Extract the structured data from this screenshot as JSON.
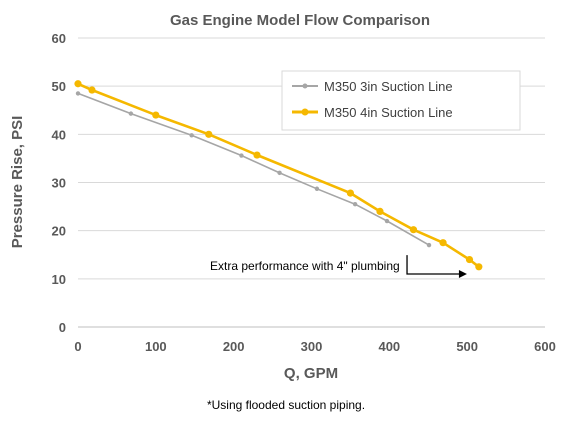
{
  "chart_data": {
    "type": "line",
    "title": "Gas Engine Model Flow Comparison",
    "xlabel": "Q, GPM",
    "ylabel": "Pressure Rise, PSI",
    "xlim": [
      0,
      600
    ],
    "ylim": [
      0,
      60
    ],
    "x_ticks": [
      "0",
      "100",
      "200",
      "300",
      "400",
      "500",
      "600"
    ],
    "y_ticks": [
      "0",
      "10",
      "20",
      "30",
      "40",
      "50",
      "60"
    ],
    "grid": "horizontal",
    "legend_position": "top-right",
    "series": [
      {
        "name": "M350 3in Suction Line",
        "color": "#a6a6a6",
        "points": [
          [
            0,
            48.5
          ],
          [
            68,
            44.3
          ],
          [
            146,
            39.8
          ],
          [
            210,
            35.6
          ],
          [
            259,
            32.0
          ],
          [
            307,
            28.7
          ],
          [
            356,
            25.5
          ],
          [
            397,
            22.0
          ],
          [
            451,
            17.0
          ]
        ]
      },
      {
        "name": "M350 4in Suction Line",
        "color": "#f5b800",
        "points": [
          [
            0,
            50.5
          ],
          [
            18,
            49.2
          ],
          [
            100,
            44.0
          ],
          [
            168,
            40.0
          ],
          [
            230,
            35.7
          ],
          [
            350,
            27.8
          ],
          [
            388,
            24.0
          ],
          [
            431,
            20.2
          ],
          [
            469,
            17.5
          ],
          [
            503,
            14.0
          ],
          [
            515,
            12.5
          ]
        ]
      }
    ],
    "annotation": {
      "text": "Extra performance with 4\" plumbing",
      "arrow_from": [
        451,
        17.0
      ],
      "arrow_to": [
        510,
        11.0
      ]
    }
  },
  "footnote": "*Using flooded suction piping."
}
